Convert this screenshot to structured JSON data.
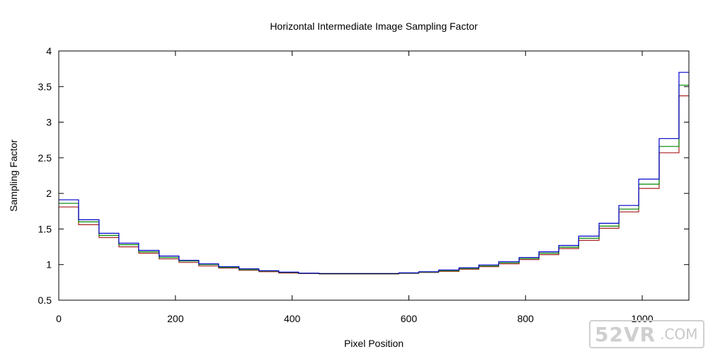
{
  "chart_data": {
    "type": "line",
    "title": "Horizontal Intermediate Image Sampling Factor",
    "xlabel": "Pixel Position",
    "ylabel": "Sampling Factor",
    "xlim": [
      0,
      1080
    ],
    "ylim": [
      0.5,
      4
    ],
    "xticks": [
      0,
      200,
      400,
      600,
      800,
      1000
    ],
    "yticks": [
      0.5,
      1,
      1.5,
      2,
      2.5,
      3,
      3.5,
      4
    ],
    "grid": false,
    "legend": "none",
    "step_style": "stepped",
    "x_edges": [
      0,
      34,
      69,
      103,
      137,
      172,
      206,
      240,
      274,
      309,
      343,
      377,
      411,
      446,
      480,
      514,
      549,
      583,
      617,
      651,
      686,
      720,
      754,
      789,
      823,
      857,
      891,
      926,
      960,
      994,
      1029,
      1063,
      1080
    ],
    "series": [
      {
        "color": "#0000cc",
        "values": [
          1.91,
          1.63,
          1.44,
          1.3,
          1.2,
          1.12,
          1.06,
          1.01,
          0.97,
          0.94,
          0.915,
          0.895,
          0.88,
          0.875,
          0.875,
          0.875,
          0.875,
          0.885,
          0.9,
          0.925,
          0.955,
          0.995,
          1.04,
          1.1,
          1.18,
          1.27,
          1.4,
          1.58,
          1.83,
          2.2,
          2.77,
          3.7
        ]
      },
      {
        "color": "#008800",
        "values": [
          1.86,
          1.6,
          1.41,
          1.28,
          1.18,
          1.1,
          1.05,
          1.0,
          0.96,
          0.93,
          0.91,
          0.89,
          0.878,
          0.873,
          0.873,
          0.873,
          0.873,
          0.88,
          0.895,
          0.915,
          0.945,
          0.98,
          1.025,
          1.085,
          1.16,
          1.245,
          1.37,
          1.54,
          1.78,
          2.13,
          2.66,
          3.52
        ]
      },
      {
        "color": "#aa2222",
        "values": [
          1.81,
          1.56,
          1.38,
          1.25,
          1.16,
          1.08,
          1.03,
          0.98,
          0.95,
          0.92,
          0.9,
          0.882,
          0.874,
          0.871,
          0.871,
          0.871,
          0.871,
          0.876,
          0.89,
          0.905,
          0.935,
          0.97,
          1.01,
          1.07,
          1.14,
          1.225,
          1.34,
          1.51,
          1.74,
          2.07,
          2.57,
          3.37
        ]
      }
    ]
  },
  "watermark": {
    "main": "52VR",
    "tail": ".COM"
  }
}
